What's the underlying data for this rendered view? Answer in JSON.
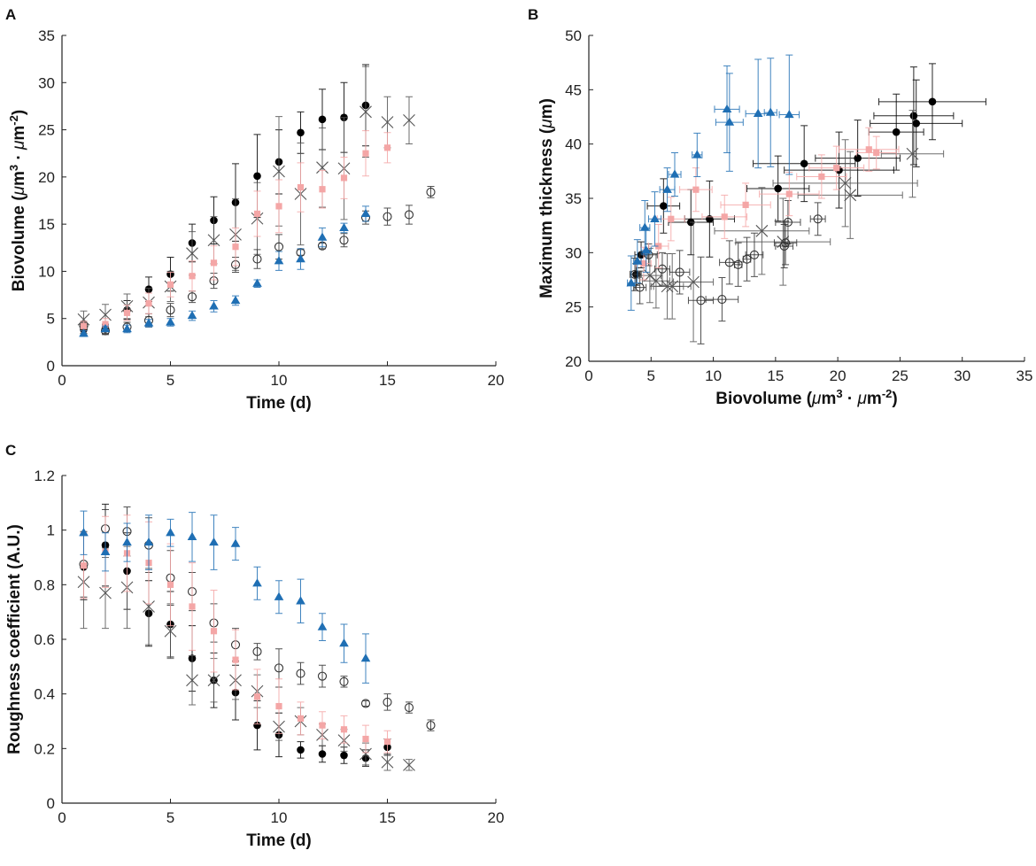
{
  "chart_data": [
    {
      "panel_label": "A",
      "type": "scatter",
      "xlabel_text": "Time (d)",
      "ylabel_parts": [
        "Biovolume (",
        "μ",
        "m",
        "3",
        " · ",
        "μ",
        "m",
        "-2",
        ")"
      ],
      "xlim": [
        0,
        20
      ],
      "ylim": [
        0,
        35
      ],
      "xticks": [
        0,
        5,
        10,
        15,
        20
      ],
      "yticks": [
        0,
        5,
        10,
        15,
        20,
        25,
        30,
        35
      ],
      "series": [
        {
          "name": "Filled circles",
          "marker": "filled-circle",
          "color": "#000000",
          "x": [
            1,
            2,
            3,
            4,
            5,
            6,
            7,
            8,
            9,
            10,
            11,
            12,
            13,
            14
          ],
          "y": [
            3.8,
            3.9,
            5.9,
            8.1,
            9.7,
            13.0,
            15.4,
            17.3,
            20.1,
            21.6,
            24.7,
            26.1,
            26.3,
            27.6
          ],
          "yerr": [
            0.4,
            0.5,
            1.0,
            1.3,
            1.8,
            2.0,
            2.5,
            4.1,
            4.4,
            3.4,
            2.2,
            3.2,
            3.7,
            4.3
          ]
        },
        {
          "name": "Crosses",
          "marker": "cross",
          "color": "#555555",
          "x": [
            1,
            2,
            3,
            4,
            5,
            6,
            7,
            8,
            9,
            10,
            11,
            12,
            13,
            14,
            15,
            16
          ],
          "y": [
            4.9,
            5.4,
            6.3,
            6.7,
            8.4,
            11.9,
            13.3,
            13.9,
            15.6,
            20.6,
            18.2,
            21.0,
            20.9,
            26.9,
            25.8,
            26.0
          ],
          "yerr": [
            0.9,
            1.1,
            1.3,
            1.5,
            1.6,
            2.3,
            2.5,
            3.8,
            3.8,
            5.8,
            5.4,
            4.2,
            5.4,
            4.8,
            2.7,
            2.5
          ]
        },
        {
          "name": "Open circles",
          "marker": "open-circle",
          "color": "#333333",
          "x": [
            1,
            2,
            3,
            4,
            5,
            6,
            7,
            8,
            9,
            10,
            11,
            12,
            13,
            14,
            15,
            16,
            17
          ],
          "y": [
            4.2,
            3.7,
            4.1,
            4.8,
            5.9,
            7.3,
            9.0,
            10.7,
            11.3,
            12.6,
            12.0,
            12.7,
            13.3,
            15.7,
            15.8,
            16.0,
            18.4
          ],
          "yerr": [
            0.5,
            0.4,
            0.5,
            0.7,
            0.7,
            0.6,
            0.8,
            0.8,
            1.0,
            1.3,
            0.3,
            0.3,
            0.7,
            0.7,
            0.9,
            1.0,
            0.6
          ]
        },
        {
          "name": "Pink squares",
          "marker": "square",
          "color": "#f4a6a6",
          "x": [
            1,
            2,
            3,
            4,
            5,
            6,
            7,
            8,
            9,
            10,
            11,
            12,
            13,
            14,
            15
          ],
          "y": [
            4.2,
            4.4,
            5.6,
            6.6,
            8.6,
            9.5,
            10.9,
            12.6,
            16.1,
            16.9,
            18.9,
            18.7,
            19.9,
            22.5,
            23.1
          ],
          "yerr": [
            0.5,
            0.6,
            0.8,
            1.1,
            1.3,
            1.6,
            1.8,
            2.0,
            2.4,
            2.8,
            2.6,
            2.0,
            2.2,
            2.4,
            1.6
          ]
        },
        {
          "name": "Blue triangles",
          "marker": "triangle",
          "color": "#1f6fb4",
          "x": [
            1,
            2,
            3,
            4,
            5,
            6,
            7,
            8,
            9,
            10,
            11,
            12,
            13,
            14
          ],
          "y": [
            3.4,
            3.9,
            3.9,
            4.5,
            4.6,
            5.3,
            6.3,
            6.9,
            8.7,
            11.1,
            11.3,
            13.6,
            14.6,
            16.1
          ],
          "yerr": [
            0.3,
            0.3,
            0.4,
            0.4,
            0.4,
            0.5,
            0.6,
            0.5,
            0.4,
            1.0,
            1.1,
            1.0,
            0.5,
            0.8
          ]
        }
      ]
    },
    {
      "panel_label": "B",
      "type": "scatter",
      "xlabel_parts": [
        "Biovolume (",
        "μ",
        "m",
        "3",
        " · ",
        "μ",
        "m",
        "-2",
        ")"
      ],
      "ylabel_parts": [
        "Maximum thickness (",
        "μ",
        "m)"
      ],
      "xlim": [
        0,
        35
      ],
      "ylim": [
        20,
        50
      ],
      "xticks": [
        0,
        5,
        10,
        15,
        20,
        25,
        30,
        35
      ],
      "yticks": [
        20,
        25,
        30,
        35,
        40,
        45,
        50
      ],
      "series": [
        {
          "name": "Filled circles",
          "marker": "filled-circle",
          "color": "#000000",
          "x": [
            3.8,
            4.2,
            6.0,
            8.2,
            9.7,
            15.2,
            17.3,
            20.1,
            21.6,
            24.7,
            26.1,
            26.3,
            27.6
          ],
          "y": [
            28.0,
            29.8,
            34.3,
            32.8,
            33.1,
            35.9,
            38.2,
            37.6,
            38.7,
            41.1,
            42.6,
            41.9,
            43.9
          ],
          "xerr": [
            0.4,
            0.5,
            1.3,
            1.8,
            2.0,
            2.5,
            4.1,
            4.4,
            3.4,
            2.2,
            3.2,
            3.7,
            4.3
          ],
          "yerr": [
            1.0,
            1.2,
            2.5,
            3.0,
            3.5,
            3.0,
            3.5,
            3.5,
            3.5,
            3.5,
            4.5,
            4.0,
            3.5
          ]
        },
        {
          "name": "Crosses",
          "marker": "cross",
          "color": "#555555",
          "x": [
            4.9,
            5.4,
            6.3,
            6.7,
            8.4,
            13.9,
            15.6,
            20.6,
            21.0,
            26.0
          ],
          "y": [
            27.9,
            27.4,
            26.9,
            26.9,
            27.3,
            32.0,
            31.0,
            36.4,
            35.3,
            39.1
          ],
          "xerr": [
            0.9,
            1.1,
            1.3,
            1.5,
            1.6,
            3.8,
            3.8,
            5.8,
            4.2,
            2.5
          ],
          "yerr": [
            2.5,
            2.5,
            3.0,
            3.0,
            5.5,
            4.0,
            4.0,
            4.0,
            4.0,
            4.0
          ]
        },
        {
          "name": "Open circles",
          "marker": "open-circle",
          "color": "#333333",
          "x": [
            3.7,
            4.1,
            4.8,
            5.9,
            7.3,
            9.0,
            10.7,
            11.3,
            12.0,
            12.7,
            13.3,
            15.7,
            15.8,
            16.0,
            18.4
          ],
          "y": [
            28.0,
            26.8,
            29.8,
            28.5,
            28.2,
            25.6,
            25.7,
            29.1,
            28.9,
            29.4,
            29.8,
            30.6,
            30.9,
            32.8,
            33.1
          ],
          "xerr": [
            0.4,
            0.5,
            0.7,
            0.6,
            0.8,
            1.0,
            1.3,
            0.8,
            0.3,
            0.3,
            0.7,
            0.7,
            0.9,
            1.0,
            0.6
          ],
          "yerr": [
            1.5,
            1.5,
            1.0,
            1.5,
            2.0,
            4.0,
            2.0,
            2.0,
            2.0,
            2.0,
            2.0,
            2.0,
            2.0,
            2.0,
            1.5
          ]
        },
        {
          "name": "Pink squares",
          "marker": "square",
          "color": "#f4a6a6",
          "x": [
            4.4,
            5.6,
            6.6,
            8.6,
            10.9,
            12.6,
            16.1,
            18.7,
            19.9,
            22.5,
            23.1
          ],
          "y": [
            29.0,
            30.6,
            33.1,
            35.8,
            33.3,
            34.4,
            35.4,
            37.0,
            37.8,
            39.5,
            39.2
          ],
          "xerr": [
            0.6,
            0.8,
            1.1,
            1.3,
            1.8,
            2.0,
            2.4,
            2.0,
            2.2,
            2.4,
            1.6
          ],
          "yerr": [
            1.5,
            2.0,
            2.0,
            2.0,
            2.0,
            2.0,
            2.0,
            2.0,
            2.0,
            2.0,
            1.5
          ]
        },
        {
          "name": "Blue triangles",
          "marker": "triangle",
          "color": "#1f6fb4",
          "x": [
            3.4,
            3.9,
            4.5,
            4.6,
            5.3,
            6.3,
            6.9,
            8.7,
            11.1,
            11.3,
            13.6,
            14.6,
            16.1
          ],
          "y": [
            27.2,
            29.2,
            32.3,
            30.2,
            33.1,
            35.8,
            37.2,
            39.0,
            43.2,
            42.0,
            42.8,
            42.9,
            42.7
          ],
          "xerr": [
            0.3,
            0.3,
            0.4,
            0.4,
            0.5,
            0.6,
            0.5,
            0.4,
            1.0,
            1.1,
            1.0,
            0.5,
            0.8
          ],
          "yerr": [
            2.5,
            2.0,
            2.5,
            2.0,
            2.5,
            2.0,
            2.0,
            2.0,
            4.0,
            4.5,
            5.0,
            5.0,
            5.5
          ]
        }
      ]
    },
    {
      "panel_label": "C",
      "type": "scatter",
      "xlabel_text": "Time (d)",
      "ylabel_text": "Roughness coefficient (A.U.)",
      "xlim": [
        0,
        20
      ],
      "ylim": [
        0,
        1.2
      ],
      "xticks": [
        0,
        5,
        10,
        15,
        20
      ],
      "yticks": [
        0,
        0.2,
        0.4,
        0.6,
        0.8,
        1,
        1.2
      ],
      "series": [
        {
          "name": "Filled circles",
          "marker": "filled-circle",
          "color": "#000000",
          "x": [
            1,
            2,
            3,
            4,
            5,
            6,
            7,
            8,
            9,
            10,
            11,
            12,
            13,
            14,
            15
          ],
          "y": [
            0.865,
            0.945,
            0.85,
            0.695,
            0.655,
            0.53,
            0.45,
            0.405,
            0.285,
            0.25,
            0.195,
            0.18,
            0.175,
            0.165,
            0.205
          ],
          "yerr": [
            0.12,
            0.15,
            0.14,
            0.12,
            0.12,
            0.12,
            0.1,
            0.1,
            0.09,
            0.08,
            0.03,
            0.03,
            0.03,
            0.03,
            0.03
          ]
        },
        {
          "name": "Crosses",
          "marker": "cross",
          "color": "#555555",
          "x": [
            1,
            2,
            3,
            4,
            5,
            6,
            7,
            8,
            9,
            10,
            11,
            12,
            13,
            14,
            15,
            16
          ],
          "y": [
            0.81,
            0.77,
            0.79,
            0.72,
            0.63,
            0.45,
            0.45,
            0.45,
            0.41,
            0.28,
            0.3,
            0.25,
            0.23,
            0.18,
            0.15,
            0.14
          ],
          "yerr": [
            0.17,
            0.13,
            0.15,
            0.14,
            0.1,
            0.09,
            0.08,
            0.07,
            0.06,
            0.05,
            0.05,
            0.04,
            0.04,
            0.04,
            0.03,
            0.02
          ]
        },
        {
          "name": "Open circles",
          "marker": "open-circle",
          "color": "#333333",
          "x": [
            1,
            2,
            3,
            4,
            5,
            6,
            7,
            8,
            9,
            10,
            11,
            12,
            13,
            14,
            15,
            16,
            17
          ],
          "y": [
            0.875,
            1.005,
            0.995,
            0.945,
            0.825,
            0.775,
            0.66,
            0.58,
            0.555,
            0.495,
            0.475,
            0.465,
            0.445,
            0.365,
            0.37,
            0.35,
            0.285
          ],
          "yerr": [
            0.12,
            0.07,
            0.09,
            0.1,
            0.1,
            0.07,
            0.07,
            0.06,
            0.03,
            0.07,
            0.04,
            0.04,
            0.02,
            0.01,
            0.03,
            0.02,
            0.02
          ]
        },
        {
          "name": "Pink squares",
          "marker": "square",
          "color": "#f4a6a6",
          "x": [
            1,
            2,
            3,
            4,
            5,
            6,
            7,
            8,
            9,
            10,
            11,
            12,
            13,
            14,
            15
          ],
          "y": [
            0.87,
            0.92,
            0.915,
            0.88,
            0.8,
            0.72,
            0.63,
            0.525,
            0.39,
            0.355,
            0.31,
            0.285,
            0.27,
            0.235,
            0.225
          ],
          "yerr": [
            0.12,
            0.13,
            0.14,
            0.15,
            0.15,
            0.16,
            0.15,
            0.11,
            0.1,
            0.1,
            0.06,
            0.05,
            0.05,
            0.05,
            0.04
          ]
        },
        {
          "name": "Blue triangles",
          "marker": "triangle",
          "color": "#1f6fb4",
          "x": [
            1,
            2,
            3,
            4,
            5,
            6,
            7,
            8,
            9,
            10,
            11,
            12,
            13,
            14
          ],
          "y": [
            0.99,
            0.92,
            0.955,
            0.955,
            0.99,
            0.975,
            0.955,
            0.95,
            0.805,
            0.755,
            0.74,
            0.645,
            0.585,
            0.53
          ],
          "yerr": [
            0.08,
            0.07,
            0.07,
            0.1,
            0.05,
            0.09,
            0.1,
            0.06,
            0.06,
            0.06,
            0.08,
            0.05,
            0.07,
            0.09
          ]
        }
      ]
    }
  ]
}
